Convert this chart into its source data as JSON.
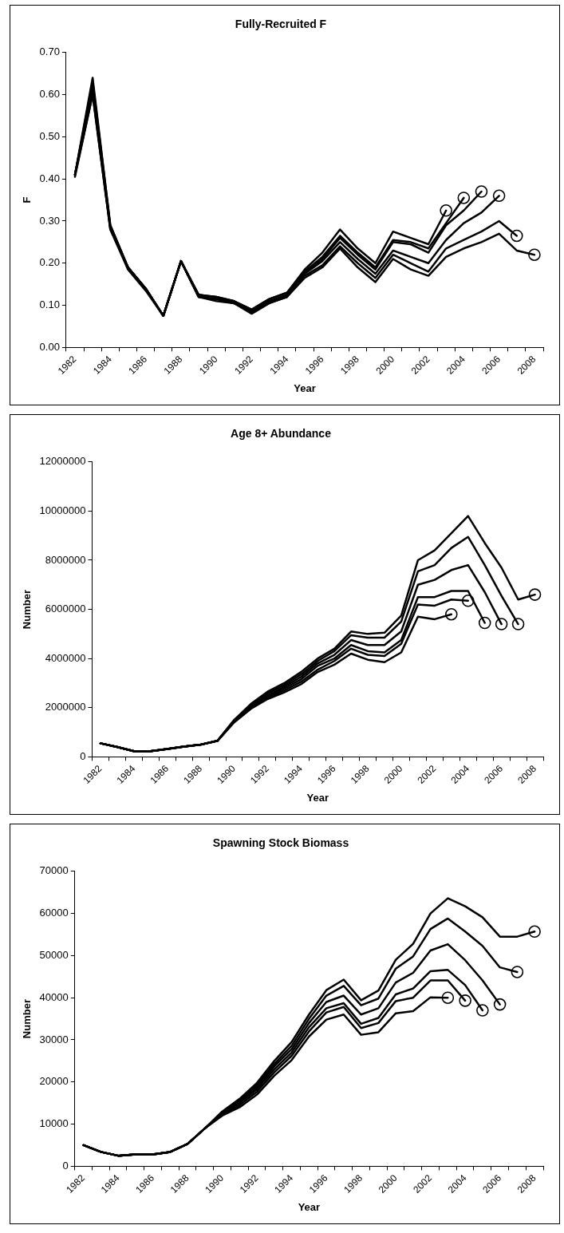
{
  "chart_data": [
    {
      "type": "line",
      "title": "Fully-Recruited F",
      "xlabel": "Year",
      "ylabel": "F",
      "categories": [
        "1982",
        null,
        "1984",
        null,
        "1986",
        null,
        "1988",
        null,
        "1990",
        null,
        "1992",
        null,
        "1994",
        null,
        "1996",
        null,
        "1998",
        null,
        "2000",
        null,
        "2002",
        null,
        "2004",
        null,
        "2006",
        null,
        "2008"
      ],
      "ylim": [
        0,
        0.7
      ],
      "yticks": [
        {
          "value": 0,
          "label": "0.00"
        },
        {
          "value": 0.1,
          "label": "0.10"
        },
        {
          "value": 0.2,
          "label": "0.20"
        },
        {
          "value": 0.3,
          "label": "0.30"
        },
        {
          "value": 0.4,
          "label": "0.40"
        },
        {
          "value": 0.5,
          "label": "0.50"
        },
        {
          "value": 0.6,
          "label": "0.60"
        },
        {
          "value": 0.7,
          "label": "0.70"
        }
      ],
      "grid": false,
      "legend": false,
      "line_style": "solid",
      "series": [
        {
          "type": "scatter",
          "color": "#000000",
          "marker": "circle",
          "values": [
            null,
            null,
            null,
            null,
            null,
            null,
            null,
            null,
            null,
            null,
            null,
            null,
            null,
            null,
            null,
            null,
            null,
            null,
            null,
            null,
            null,
            0.325,
            0.355,
            0.37,
            0.36,
            0.265,
            0.22
          ]
        },
        {
          "color": "#000000",
          "values": [
            0.41,
            0.64,
            0.29,
            0.19,
            0.14,
            0.075,
            0.205,
            0.125,
            0.12,
            0.11,
            0.09,
            0.115,
            0.13,
            0.185,
            0.225,
            0.28,
            0.235,
            0.2,
            0.275,
            0.26,
            0.245,
            0.325,
            null,
            null,
            null,
            null,
            null
          ]
        },
        {
          "color": "#000000",
          "values": [
            0.41,
            0.63,
            0.29,
            0.19,
            0.14,
            0.075,
            0.205,
            0.125,
            0.12,
            0.11,
            0.09,
            0.115,
            0.13,
            0.18,
            0.215,
            0.265,
            0.225,
            0.19,
            0.255,
            0.25,
            0.235,
            0.295,
            0.355,
            null,
            null,
            null,
            null
          ]
        },
        {
          "color": "#000000",
          "values": [
            0.41,
            0.62,
            0.285,
            0.19,
            0.14,
            0.075,
            0.205,
            0.12,
            0.115,
            0.11,
            0.085,
            0.11,
            0.125,
            0.178,
            0.21,
            0.26,
            0.22,
            0.185,
            0.25,
            0.245,
            0.225,
            0.29,
            0.325,
            0.37,
            null,
            null,
            null
          ]
        },
        {
          "color": "#000000",
          "values": [
            0.41,
            0.61,
            0.285,
            0.19,
            0.14,
            0.075,
            0.205,
            0.12,
            0.115,
            0.105,
            0.085,
            0.11,
            0.12,
            0.175,
            0.205,
            0.25,
            0.21,
            0.175,
            0.23,
            0.215,
            0.2,
            0.255,
            0.295,
            0.32,
            0.36,
            null,
            null
          ]
        },
        {
          "color": "#000000",
          "values": [
            0.41,
            0.6,
            0.28,
            0.19,
            0.14,
            0.075,
            0.205,
            0.12,
            0.115,
            0.105,
            0.085,
            0.105,
            0.12,
            0.17,
            0.195,
            0.24,
            0.2,
            0.165,
            0.22,
            0.2,
            0.18,
            0.235,
            0.255,
            0.275,
            0.3,
            0.265,
            null
          ]
        },
        {
          "color": "#000000",
          "values": [
            0.405,
            0.6,
            0.28,
            0.185,
            0.135,
            0.075,
            0.205,
            0.12,
            0.11,
            0.105,
            0.08,
            0.105,
            0.12,
            0.165,
            0.19,
            0.235,
            0.19,
            0.155,
            0.21,
            0.185,
            0.17,
            0.215,
            0.235,
            0.25,
            0.27,
            0.23,
            0.22
          ]
        }
      ]
    },
    {
      "type": "line",
      "title": "Age 8+ Abundance",
      "xlabel": "Year",
      "ylabel": "Number",
      "categories": [
        "1982",
        null,
        "1984",
        null,
        "1986",
        null,
        "1988",
        null,
        "1990",
        null,
        "1992",
        null,
        "1994",
        null,
        "1996",
        null,
        "1998",
        null,
        "2000",
        null,
        "2002",
        null,
        "2004",
        null,
        "2006",
        null,
        "2008"
      ],
      "ylim": [
        0,
        12000000
      ],
      "yticks": [
        0,
        2000000,
        4000000,
        6000000,
        8000000,
        10000000,
        12000000
      ],
      "grid": false,
      "legend": false,
      "line_style": "solid",
      "series": [
        {
          "type": "scatter",
          "color": "#000000",
          "marker": "circle",
          "values": [
            null,
            null,
            null,
            null,
            null,
            null,
            null,
            null,
            null,
            null,
            null,
            null,
            null,
            null,
            null,
            null,
            null,
            null,
            null,
            null,
            null,
            5800000,
            6350000,
            5450000,
            5400000,
            5400000,
            6600000
          ]
        },
        {
          "color": "#000000",
          "values": [
            550000,
            400000,
            230000,
            230000,
            320000,
            420000,
            500000,
            650000,
            1400000,
            1950000,
            2350000,
            2620000,
            2950000,
            3450000,
            3750000,
            4200000,
            3950000,
            3850000,
            4250000,
            5700000,
            5600000,
            5800000,
            null,
            null,
            null,
            null,
            null
          ]
        },
        {
          "color": "#000000",
          "values": [
            550000,
            400000,
            230000,
            230000,
            320000,
            420000,
            500000,
            650000,
            1420000,
            1980000,
            2400000,
            2700000,
            3050000,
            3550000,
            3900000,
            4400000,
            4150000,
            4100000,
            4600000,
            6200000,
            6150000,
            6400000,
            6350000,
            null,
            null,
            null,
            null
          ]
        },
        {
          "color": "#000000",
          "values": [
            550000,
            400000,
            230000,
            230000,
            320000,
            420000,
            500000,
            650000,
            1440000,
            2020000,
            2450000,
            2780000,
            3150000,
            3700000,
            4000000,
            4550000,
            4300000,
            4250000,
            4750000,
            6500000,
            6500000,
            6750000,
            6750000,
            5450000,
            null,
            null,
            null
          ]
        },
        {
          "color": "#000000",
          "values": [
            550000,
            400000,
            230000,
            230000,
            320000,
            420000,
            500000,
            650000,
            1460000,
            2050000,
            2500000,
            2850000,
            3250000,
            3800000,
            4150000,
            4750000,
            4550000,
            4550000,
            5100000,
            7000000,
            7200000,
            7600000,
            7800000,
            6700000,
            5400000,
            null,
            null
          ]
        },
        {
          "color": "#000000",
          "values": [
            550000,
            400000,
            230000,
            230000,
            320000,
            420000,
            500000,
            650000,
            1480000,
            2100000,
            2580000,
            2920000,
            3350000,
            3900000,
            4300000,
            4950000,
            4850000,
            4850000,
            5500000,
            7550000,
            7800000,
            8500000,
            8950000,
            7800000,
            6550000,
            5400000,
            null
          ]
        },
        {
          "color": "#000000",
          "values": [
            550000,
            400000,
            230000,
            230000,
            320000,
            420000,
            500000,
            650000,
            1500000,
            2150000,
            2650000,
            3000000,
            3450000,
            4000000,
            4400000,
            5100000,
            5000000,
            5050000,
            5750000,
            8000000,
            8400000,
            9100000,
            9800000,
            8700000,
            7700000,
            6400000,
            6600000
          ]
        }
      ]
    },
    {
      "type": "line",
      "title": "Spawning Stock Biomass",
      "xlabel": "Year",
      "ylabel": "Number",
      "categories": [
        "1982",
        null,
        "1984",
        null,
        "1986",
        null,
        "1988",
        null,
        "1990",
        null,
        "1992",
        null,
        "1994",
        null,
        "1996",
        null,
        "1998",
        null,
        "2000",
        null,
        "2002",
        null,
        "2004",
        null,
        "2006",
        null,
        "2008"
      ],
      "ylim": [
        0,
        70000
      ],
      "yticks": [
        0,
        10000,
        20000,
        30000,
        40000,
        50000,
        60000,
        70000
      ],
      "grid": false,
      "legend": false,
      "line_style": "solid",
      "series": [
        {
          "type": "scatter",
          "color": "#000000",
          "marker": "circle",
          "values": [
            null,
            null,
            null,
            null,
            null,
            null,
            null,
            null,
            null,
            null,
            null,
            null,
            null,
            null,
            null,
            null,
            null,
            null,
            null,
            null,
            null,
            40000,
            39300,
            37000,
            38400,
            46100,
            55700
          ]
        },
        {
          "color": "#000000",
          "values": [
            5000,
            3400,
            2500,
            2800,
            2800,
            3400,
            5300,
            9000,
            12000,
            14000,
            17000,
            21500,
            25200,
            30800,
            34800,
            36000,
            31200,
            31800,
            36300,
            36800,
            40100,
            40000,
            null,
            null,
            null,
            null,
            null
          ]
        },
        {
          "color": "#000000",
          "values": [
            5000,
            3400,
            2500,
            2800,
            2800,
            3400,
            5300,
            9000,
            12200,
            14500,
            17700,
            22300,
            26200,
            32000,
            36500,
            37800,
            32800,
            34000,
            39200,
            40000,
            44100,
            44100,
            39300,
            null,
            null,
            null,
            null
          ]
        },
        {
          "color": "#000000",
          "values": [
            5000,
            3400,
            2500,
            2800,
            2800,
            3400,
            5300,
            9000,
            12400,
            15000,
            18300,
            23000,
            27000,
            33000,
            37500,
            38700,
            33800,
            35200,
            40800,
            42200,
            46300,
            46600,
            43000,
            37000,
            null,
            null,
            null
          ]
        },
        {
          "color": "#000000",
          "values": [
            5000,
            3400,
            2500,
            2800,
            2800,
            3400,
            5300,
            9000,
            12600,
            15300,
            18800,
            23700,
            27800,
            34000,
            39000,
            40500,
            36000,
            37500,
            43600,
            45900,
            51200,
            52700,
            48900,
            44100,
            38400,
            null,
            null
          ]
        },
        {
          "color": "#000000",
          "values": [
            5000,
            3400,
            2500,
            2800,
            2800,
            3400,
            5300,
            9000,
            12800,
            15600,
            19300,
            24300,
            28600,
            35000,
            40500,
            42800,
            38200,
            39800,
            46900,
            49800,
            56300,
            58800,
            55700,
            52300,
            47200,
            46100,
            null
          ]
        },
        {
          "color": "#000000",
          "values": [
            5000,
            3400,
            2500,
            2800,
            2800,
            3400,
            5300,
            9000,
            13000,
            16000,
            19800,
            25000,
            29500,
            36000,
            41800,
            44300,
            39400,
            41700,
            49000,
            52800,
            60000,
            63600,
            61700,
            59100,
            54500,
            54500,
            55700
          ]
        }
      ]
    }
  ]
}
